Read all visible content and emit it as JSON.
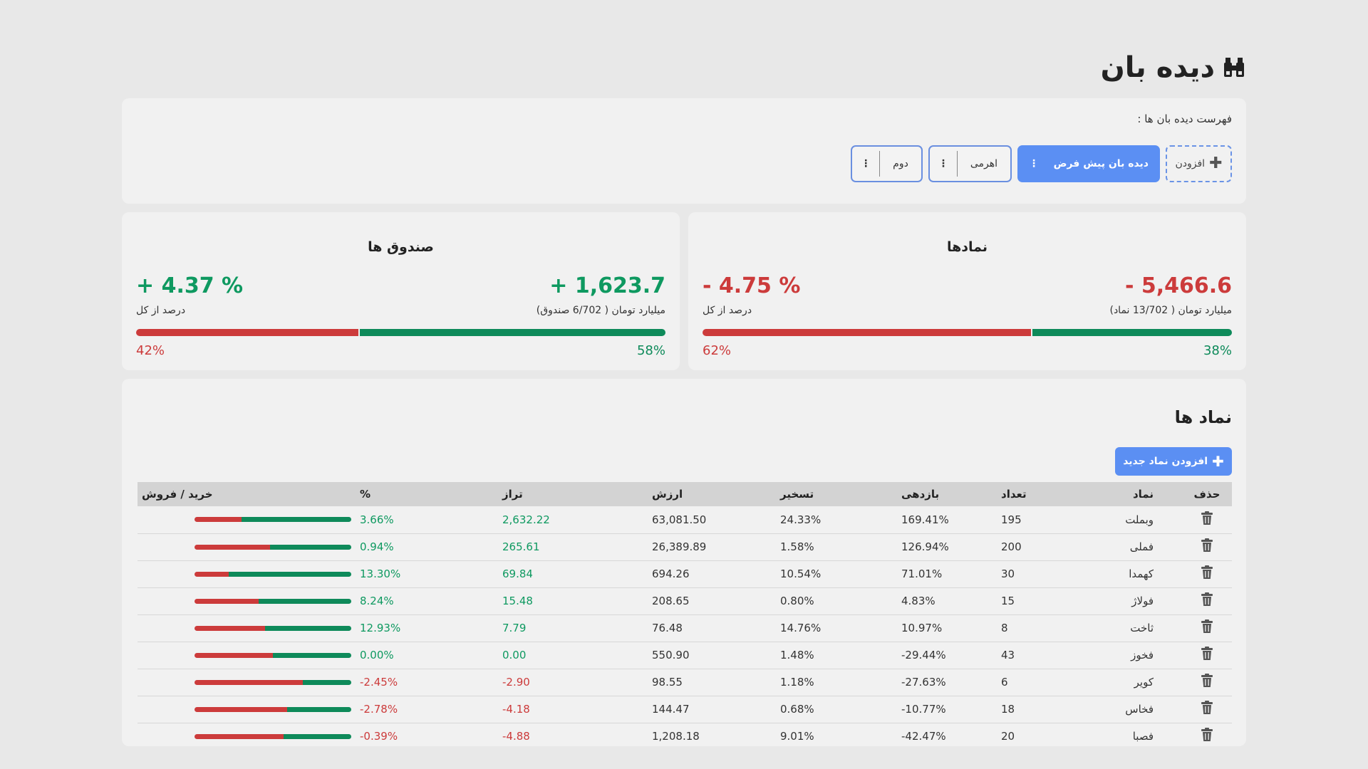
{
  "header": {
    "title": "دیده بان",
    "icon": "binoculars-icon"
  },
  "watchlists": {
    "label": "فهرست دیده بان ها :",
    "add_label": "افزودن",
    "items": [
      {
        "label": "دیده بان پیش فرض",
        "active": true
      },
      {
        "label": "اهرمی",
        "active": false
      },
      {
        "label": "دوم",
        "active": false
      }
    ]
  },
  "summary": {
    "symbols": {
      "title": "نمادها",
      "value": "- 5,466.6",
      "unit": "میلیارد تومان ( 13/702 نماد)",
      "percent": "- 4.75 %",
      "percent_label": "درصد از کل",
      "green_pct": "38%",
      "red_pct": "62%",
      "red_fraction": 0.62
    },
    "funds": {
      "title": "صندوق ها",
      "value": "+ 1,623.7",
      "unit": "میلیارد تومان ( 6/702 صندوق)",
      "percent": "+ 4.37 %",
      "percent_label": "درصد از کل",
      "green_pct": "58%",
      "red_pct": "42%",
      "red_fraction": 0.42
    }
  },
  "list": {
    "title": "نماد ها",
    "add_button": "افزودن نماد جدید",
    "columns": {
      "delete": "حذف",
      "symbol": "نماد",
      "count": "تعداد",
      "return": "بازدهی",
      "conquest": "تسخیر",
      "value": "ارزش",
      "balance": "تراز",
      "percent": "%",
      "buy_sell": "خرید / فروش"
    },
    "rows": [
      {
        "symbol": "وبملت",
        "count": "195",
        "return": "169.41%",
        "conquest": "24.33%",
        "value": "63,081.50",
        "balance": "2,632.22",
        "percent": "3.66%",
        "positive": true,
        "red_fraction": 0.3
      },
      {
        "symbol": "فملی",
        "count": "200",
        "return": "126.94%",
        "conquest": "1.58%",
        "value": "26,389.89",
        "balance": "265.61",
        "percent": "0.94%",
        "positive": true,
        "red_fraction": 0.48
      },
      {
        "symbol": "کهمدا",
        "count": "30",
        "return": "71.01%",
        "conquest": "10.54%",
        "value": "694.26",
        "balance": "69.84",
        "percent": "13.30%",
        "positive": true,
        "red_fraction": 0.22
      },
      {
        "symbol": "فولاژ",
        "count": "15",
        "return": "4.83%",
        "conquest": "0.80%",
        "value": "208.65",
        "balance": "15.48",
        "percent": "8.24%",
        "positive": true,
        "red_fraction": 0.41
      },
      {
        "symbol": "ثاخت",
        "count": "8",
        "return": "10.97%",
        "conquest": "14.76%",
        "value": "76.48",
        "balance": "7.79",
        "percent": "12.93%",
        "positive": true,
        "red_fraction": 0.45
      },
      {
        "symbol": "فخوز",
        "count": "43",
        "return": "29.44%-",
        "conquest": "1.48%",
        "value": "550.90",
        "balance": "0.00",
        "percent": "0.00%",
        "positive": true,
        "red_fraction": 0.5
      },
      {
        "symbol": "کویر",
        "count": "6",
        "return": "27.63%-",
        "conquest": "1.18%",
        "value": "98.55",
        "balance": "2.90-",
        "percent": "2.45%-",
        "positive": false,
        "red_fraction": 0.69
      },
      {
        "symbol": "فخاس",
        "count": "18",
        "return": "10.77%-",
        "conquest": "0.68%",
        "value": "144.47",
        "balance": "4.18-",
        "percent": "2.78%-",
        "positive": false,
        "red_fraction": 0.59
      },
      {
        "symbol": "فصبا",
        "count": "20",
        "return": "42.47%-",
        "conquest": "9.01%",
        "value": "1,208.18",
        "balance": "4.88-",
        "percent": "0.39%-",
        "positive": false,
        "red_fraction": 0.57
      }
    ]
  },
  "colors": {
    "accent": "#5b8ff3",
    "positive": "#0e9960",
    "negative": "#cc3b3b",
    "card": "#f1f1f1",
    "background": "#e8e8e8"
  }
}
